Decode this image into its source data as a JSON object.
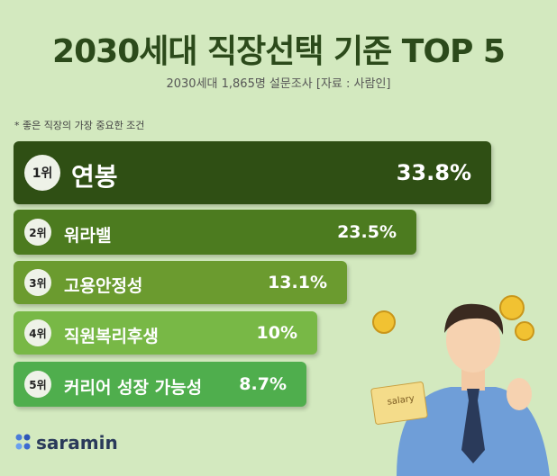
{
  "header": {
    "title": "2030세대 직장선택 기준 TOP 5",
    "subtitle": "2030세대 1,865명 설문조사 [자료 : 사람인]",
    "note": "* 좋은 직장의 가장 중요한 조건"
  },
  "items": [
    {
      "rank": "1위",
      "label": "연봉",
      "value": "33.8%"
    },
    {
      "rank": "2위",
      "label": "워라밸",
      "value": "23.5%"
    },
    {
      "rank": "3위",
      "label": "고용안정성",
      "value": "13.1%"
    },
    {
      "rank": "4위",
      "label": "직원복리후생",
      "value": "10%"
    },
    {
      "rank": "5위",
      "label": "커리어 성장 가능성",
      "value": "8.7%"
    }
  ],
  "logo": "saramin",
  "illustration": {
    "paper": "salary"
  }
}
